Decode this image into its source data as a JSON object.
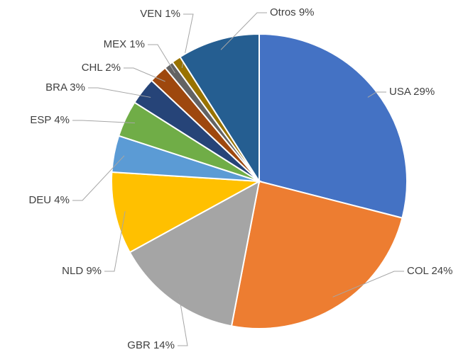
{
  "chart_data": {
    "type": "pie",
    "values": [
      29,
      24,
      14,
      9,
      4,
      4,
      3,
      2,
      1,
      1,
      9
    ],
    "value_labels": [
      "USA 29%",
      "COL 24%",
      "GBR 14%",
      "NLD 9%",
      "DEU 4%",
      "ESP 4%",
      "BRA 3%",
      "CHL 2%",
      "MEX 1%",
      "VEN 1%",
      "Otros 9%"
    ],
    "colors": [
      "#4472c4",
      "#ed7d31",
      "#a5a5a5",
      "#ffc000",
      "#5b9bd5",
      "#70ad47",
      "#264478",
      "#9e480e",
      "#636363",
      "#997300",
      "#255e91"
    ]
  }
}
